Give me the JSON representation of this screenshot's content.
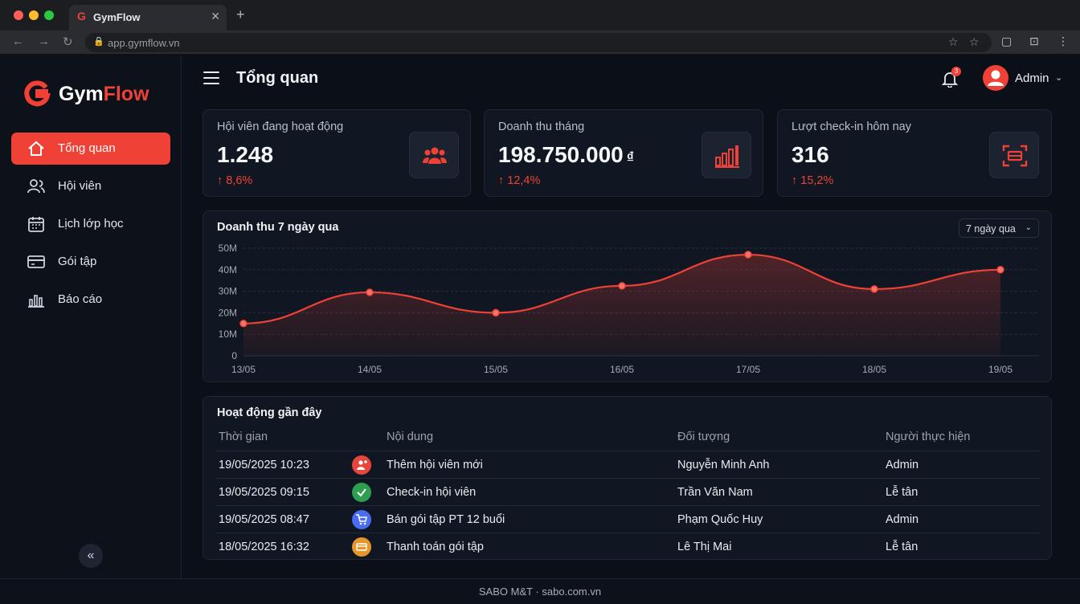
{
  "browser": {
    "tab_title": "GymFlow",
    "tab_logo": "G",
    "url": "app.gymflow.vn",
    "colors": {
      "close": "#ff5f57",
      "minimize": "#febc2e",
      "maximize": "#28c840"
    }
  },
  "sidebar": {
    "brand_part1": "Gym",
    "brand_part2": "Flow",
    "items": [
      {
        "label": "Tổng quan",
        "icon": "home-icon",
        "active": true
      },
      {
        "label": "Hội viên",
        "icon": "users-icon",
        "active": false
      },
      {
        "label": "Lịch lớp học",
        "icon": "calendar-icon",
        "active": false
      },
      {
        "label": "Gói tập",
        "icon": "card-icon",
        "active": false
      },
      {
        "label": "Báo cáo",
        "icon": "bar-chart-icon",
        "active": false
      }
    ],
    "collapse_label": "«"
  },
  "header": {
    "title": "Tổng quan",
    "notification_count": "3",
    "user_name": "Admin"
  },
  "stats": [
    {
      "label": "Hội viên đang hoạt động",
      "value": "1.248",
      "currency": "",
      "change": "↑ 8,6%",
      "icon": "users-group-icon"
    },
    {
      "label": "Doanh thu tháng",
      "value": "198.750.000",
      "currency": "₫",
      "change": "↑ 12,4%",
      "icon": "revenue-bars-icon"
    },
    {
      "label": "Lượt check-in hôm nay",
      "value": "316",
      "currency": "",
      "change": "↑ 15,2%",
      "icon": "scan-icon"
    }
  ],
  "revenue_chart": {
    "title": "Doanh thu 7 ngày qua",
    "range_label": "7 ngày qua",
    "chart_data": {
      "type": "area",
      "categories": [
        "13/05",
        "14/05",
        "15/05",
        "16/05",
        "17/05",
        "18/05",
        "19/05"
      ],
      "values": [
        15,
        29.5,
        20,
        32.5,
        47,
        31,
        40
      ],
      "ylim": [
        0,
        50
      ],
      "yticks": [
        "0",
        "10M",
        "20M",
        "30M",
        "40M",
        "50M"
      ],
      "grid": true,
      "color": "#ef4136"
    }
  },
  "activity": {
    "title": "Hoạt động gần đây",
    "columns": [
      "Thời gian",
      "Nội dung",
      "Đối tượng",
      "Người thực hiện"
    ],
    "rows": [
      {
        "time": "19/05/2025 10:23",
        "content": "Thêm hội viên mới",
        "target": "Nguyễn Minh Anh",
        "actor": "Admin",
        "icon": "add-user-icon",
        "color": "#e8453c"
      },
      {
        "time": "19/05/2025 09:15",
        "content": "Check-in hội viên",
        "target": "Trần Văn Nam",
        "actor": "Lễ tân",
        "icon": "check-icon",
        "color": "#2e9e4f"
      },
      {
        "time": "19/05/2025 08:47",
        "content": "Bán gói tập PT 12 buổi",
        "target": "Phạm Quốc Huy",
        "actor": "Admin",
        "icon": "cart-icon",
        "color": "#4a6cf0"
      },
      {
        "time": "18/05/2025 16:32",
        "content": "Thanh toán gói tập",
        "target": "Lê Thị Mai",
        "actor": "Lễ tân",
        "icon": "payment-icon",
        "color": "#e5962a"
      }
    ]
  },
  "footer": {
    "text": "SABO M&T · sabo.com.vn"
  }
}
